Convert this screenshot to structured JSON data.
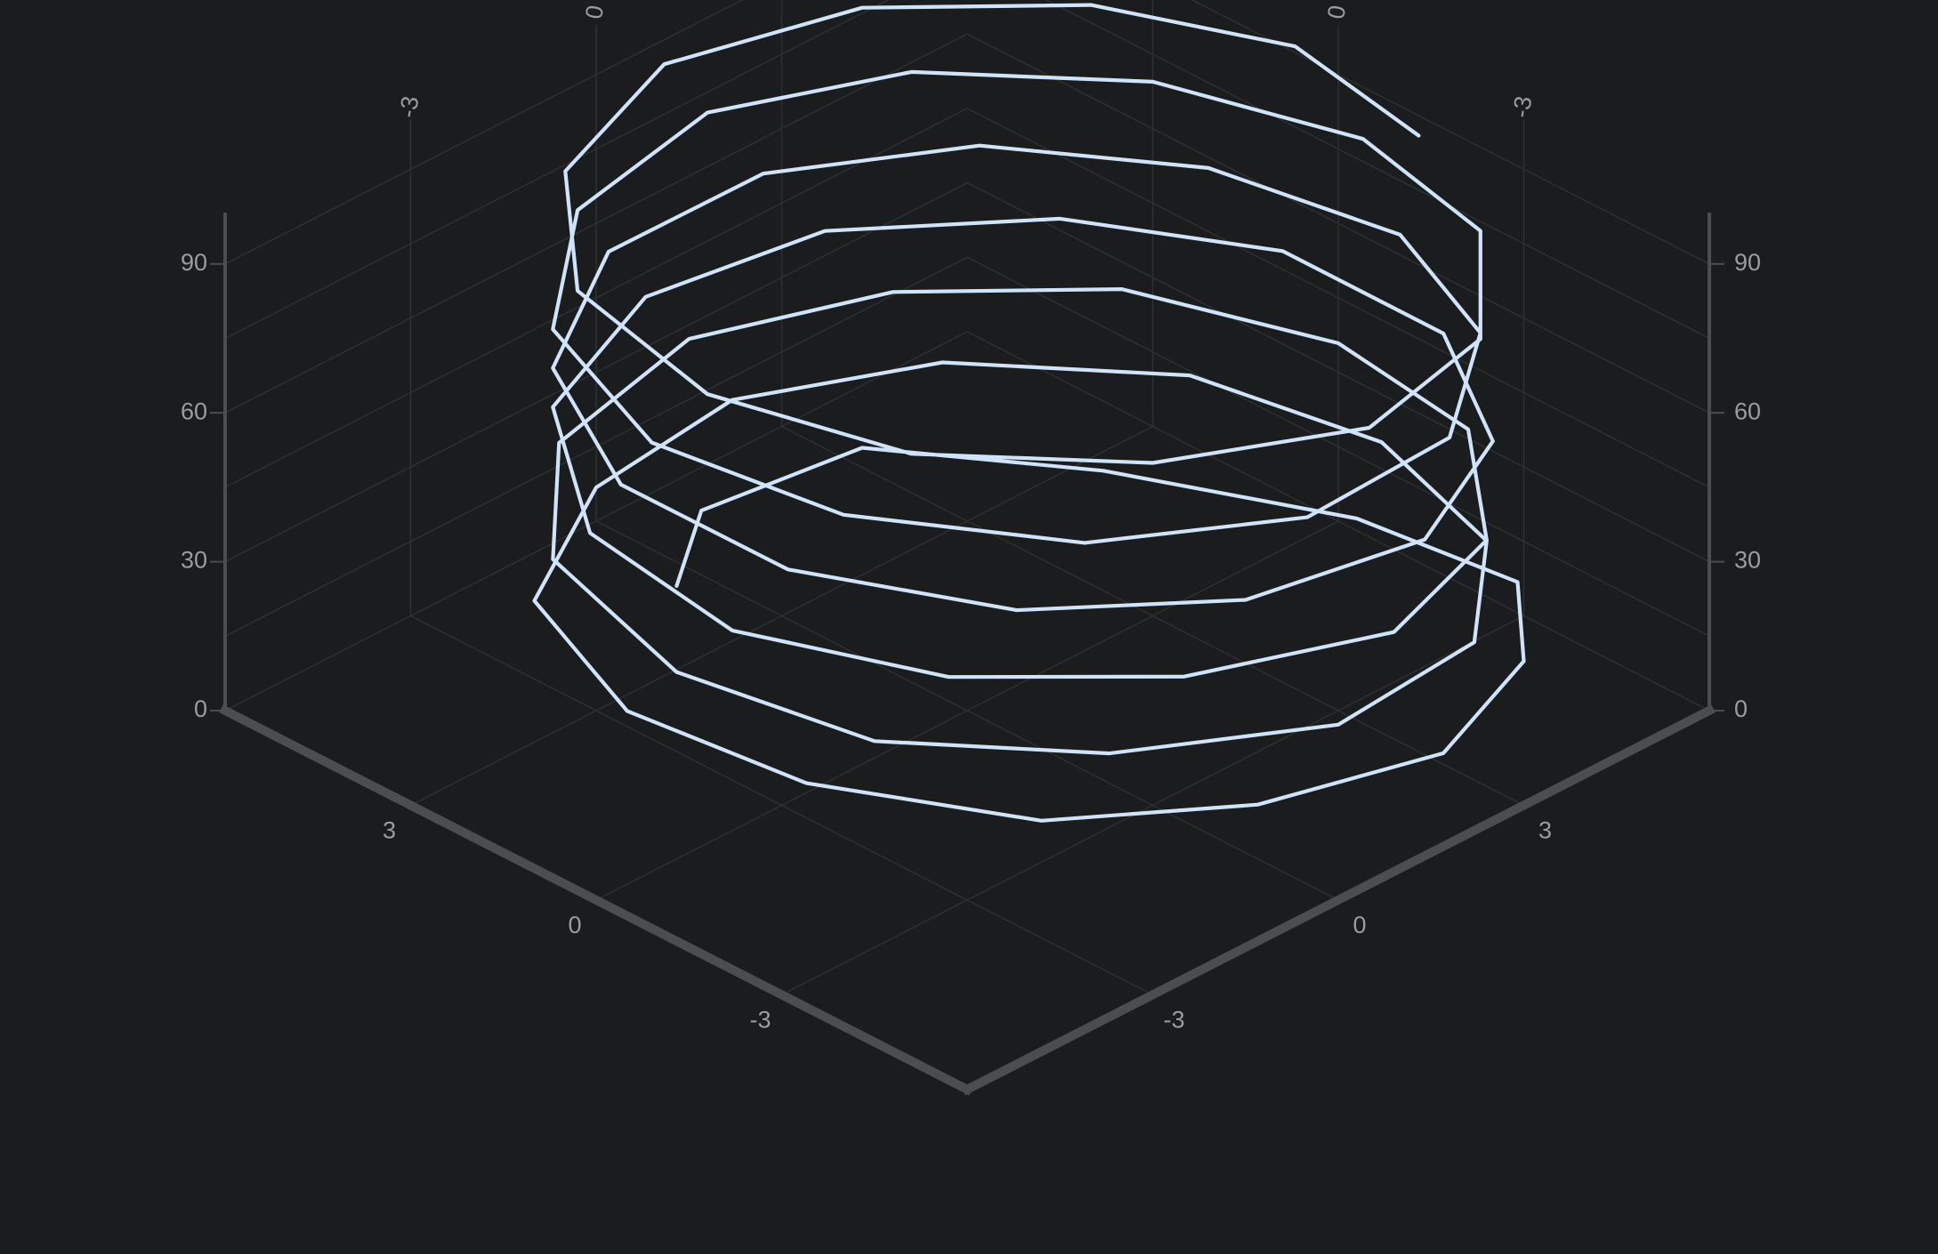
{
  "chart_data": {
    "type": "line3d",
    "title": "",
    "theme": {
      "background": "#1b1c1e",
      "line_color": "#cfe4fa",
      "axis_color": "#4c4d4f",
      "grid_color": "#2e3033",
      "tick_color": "#9a9c9f"
    },
    "axes": {
      "x": {
        "label": "",
        "range": [
          -6,
          6
        ],
        "ticks": [
          -3,
          0,
          3
        ]
      },
      "y": {
        "label": "",
        "range": [
          -6,
          6
        ],
        "ticks": [
          -3,
          0,
          3
        ]
      },
      "z": {
        "label": "",
        "range": [
          0,
          100
        ],
        "ticks": [
          0,
          30,
          60,
          90
        ]
      }
    },
    "grid": true,
    "series": [
      {
        "style": "3d-path",
        "points": [
          [
            -1.1,
            3.6,
            9.2
          ],
          [
            0.2,
            4.5,
            10.4
          ],
          [
            2.4,
            4.1,
            11.6
          ],
          [
            3.9,
            1.7,
            12.7
          ],
          [
            5.1,
            -1.2,
            13.9
          ],
          [
            5.3,
            -3.6,
            15.1
          ],
          [
            4.0,
            -5.0,
            16.3
          ],
          [
            1.8,
            -5.9,
            17.5
          ],
          [
            -0.6,
            -5.3,
            18.6
          ],
          [
            -2.7,
            -3.9,
            19.8
          ],
          [
            -4.1,
            -1.5,
            21.0
          ],
          [
            -4.5,
            1.0,
            22.2
          ],
          [
            -3.6,
            3.4,
            23.4
          ],
          [
            -1.4,
            4.6,
            24.6
          ],
          [
            1.0,
            4.8,
            25.7
          ],
          [
            3.2,
            3.6,
            26.9
          ],
          [
            4.9,
            1.3,
            28.1
          ],
          [
            5.3,
            -1.4,
            29.3
          ],
          [
            4.5,
            -3.9,
            30.4
          ],
          [
            2.7,
            -5.5,
            31.6
          ],
          [
            0.2,
            -5.8,
            32.8
          ],
          [
            -2.2,
            -4.5,
            34.0
          ],
          [
            -4.0,
            -2.5,
            35.2
          ],
          [
            -4.6,
            0.1,
            36.4
          ],
          [
            -3.9,
            2.8,
            37.5
          ],
          [
            -2.1,
            4.5,
            38.7
          ],
          [
            0.5,
            5.0,
            39.9
          ],
          [
            2.8,
            4.0,
            41.1
          ],
          [
            4.6,
            2.1,
            42.3
          ],
          [
            5.4,
            -0.6,
            43.5
          ],
          [
            5.0,
            -3.1,
            44.6
          ],
          [
            3.3,
            -5.1,
            45.8
          ],
          [
            1.0,
            -5.9,
            47.0
          ],
          [
            -1.5,
            -5.0,
            48.2
          ],
          [
            -3.5,
            -3.2,
            49.4
          ],
          [
            -4.6,
            -0.8,
            50.5
          ],
          [
            -4.3,
            1.8,
            51.7
          ],
          [
            -2.7,
            4.0,
            52.9
          ],
          [
            -0.3,
            4.9,
            54.1
          ],
          [
            2.1,
            4.4,
            55.3
          ],
          [
            4.1,
            2.6,
            56.5
          ],
          [
            5.3,
            0.2,
            57.6
          ],
          [
            5.2,
            -2.5,
            58.8
          ],
          [
            3.8,
            -4.7,
            60.0
          ],
          [
            1.6,
            -5.8,
            61.2
          ],
          [
            -0.9,
            -5.4,
            62.4
          ],
          [
            -3.0,
            -3.8,
            63.5
          ],
          [
            -4.3,
            -1.4,
            64.7
          ],
          [
            -4.4,
            1.2,
            65.9
          ],
          [
            -3.2,
            3.5,
            67.1
          ],
          [
            -1.0,
            4.8,
            68.3
          ],
          [
            1.4,
            4.7,
            69.4
          ],
          [
            3.5,
            3.3,
            70.6
          ],
          [
            4.9,
            1.0,
            71.8
          ],
          [
            5.3,
            -1.7,
            73.0
          ],
          [
            4.3,
            -4.0,
            74.2
          ],
          [
            2.3,
            -5.5,
            75.4
          ],
          [
            -0.2,
            -5.7,
            76.5
          ],
          [
            -2.5,
            -4.4,
            77.7
          ],
          [
            -4.1,
            -2.1,
            78.9
          ],
          [
            -4.6,
            0.5,
            80.1
          ],
          [
            -3.7,
            3.0,
            81.3
          ],
          [
            -1.7,
            4.6,
            82.4
          ],
          [
            0.8,
            5.0,
            83.6
          ],
          [
            3.0,
            3.9,
            84.8
          ],
          [
            4.7,
            1.7,
            86.0
          ],
          [
            5.4,
            -1.0,
            87.2
          ],
          [
            4.8,
            -3.5,
            88.4
          ],
          [
            3.0,
            -5.3,
            89.5
          ],
          [
            0.6,
            -5.9,
            90.7
          ],
          [
            -1.8,
            -4.8,
            91.9
          ],
          [
            -3.7,
            -2.8,
            93.1
          ],
          [
            -4.5,
            -0.3,
            94.3
          ],
          [
            -4.0,
            2.3,
            95.4
          ],
          [
            -2.3,
            4.2,
            96.6
          ],
          [
            0.1,
            5.0,
            97.8
          ],
          [
            2.5,
            4.2,
            99.0
          ],
          [
            4.3,
            2.3,
            100.2
          ],
          [
            5.2,
            -0.1,
            101.4
          ],
          [
            4.7,
            -2.6,
            102.5
          ]
        ]
      }
    ]
  }
}
